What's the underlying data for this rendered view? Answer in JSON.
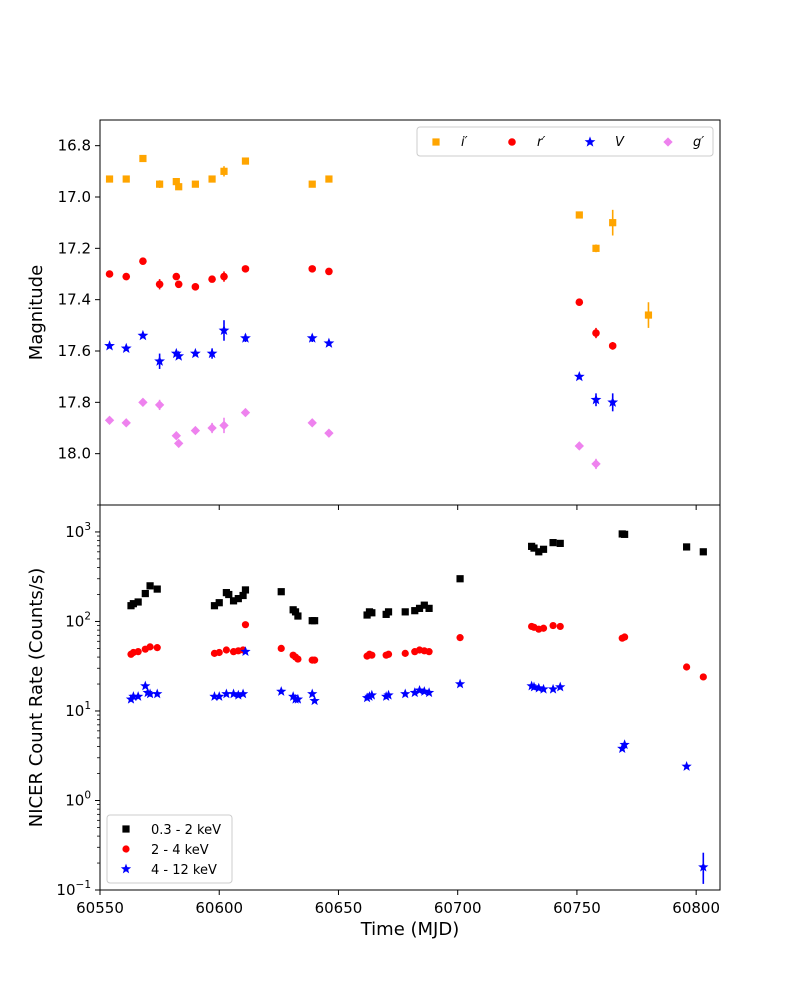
{
  "chart_data": [
    {
      "type": "scatter",
      "ylabel": "Magnitude",
      "y_inverted": true,
      "ylim": [
        16.7,
        18.2
      ],
      "xlim": [
        60550,
        60810
      ],
      "y_ticks": [
        "16.8",
        "17.0",
        "17.2",
        "17.4",
        "17.6",
        "17.8",
        "18.0"
      ],
      "legend": {
        "placement": "top-right",
        "columns": 4
      },
      "series": [
        {
          "name": "i′",
          "marker": "square",
          "color": "#FFA500",
          "points": [
            [
              60554,
              16.93
            ],
            [
              60561,
              16.93
            ],
            [
              60568,
              16.85
            ],
            [
              60575,
              16.95
            ],
            [
              60582,
              16.94
            ],
            [
              60583,
              16.96
            ],
            [
              60590,
              16.95
            ],
            [
              60597,
              16.93
            ],
            [
              60602,
              16.9
            ],
            [
              60611,
              16.86
            ],
            [
              60639,
              16.95
            ],
            [
              60646,
              16.93
            ],
            [
              60751,
              17.07
            ],
            [
              60758,
              17.2
            ],
            [
              60765,
              17.1
            ],
            [
              60780,
              17.46
            ]
          ]
        },
        {
          "name": "r′",
          "marker": "circle",
          "color": "#FF0000",
          "points": [
            [
              60554,
              17.3
            ],
            [
              60561,
              17.31
            ],
            [
              60568,
              17.25
            ],
            [
              60575,
              17.34
            ],
            [
              60582,
              17.31
            ],
            [
              60583,
              17.34
            ],
            [
              60590,
              17.35
            ],
            [
              60597,
              17.32
            ],
            [
              60602,
              17.31
            ],
            [
              60611,
              17.28
            ],
            [
              60639,
              17.28
            ],
            [
              60646,
              17.29
            ],
            [
              60751,
              17.41
            ],
            [
              60758,
              17.53
            ],
            [
              60765,
              17.58
            ]
          ]
        },
        {
          "name": "V",
          "marker": "star",
          "color": "#0000FF",
          "points": [
            [
              60554,
              17.58
            ],
            [
              60561,
              17.59
            ],
            [
              60568,
              17.54
            ],
            [
              60575,
              17.64
            ],
            [
              60582,
              17.61
            ],
            [
              60583,
              17.62
            ],
            [
              60590,
              17.61
            ],
            [
              60597,
              17.61
            ],
            [
              60602,
              17.52
            ],
            [
              60611,
              17.55
            ],
            [
              60639,
              17.55
            ],
            [
              60646,
              17.57
            ],
            [
              60751,
              17.7
            ],
            [
              60758,
              17.79
            ],
            [
              60765,
              17.8
            ]
          ]
        },
        {
          "name": "g′",
          "marker": "diamond",
          "color": "#EE82EE",
          "points": [
            [
              60554,
              17.87
            ],
            [
              60561,
              17.88
            ],
            [
              60568,
              17.8
            ],
            [
              60575,
              17.81
            ],
            [
              60582,
              17.93
            ],
            [
              60583,
              17.96
            ],
            [
              60590,
              17.91
            ],
            [
              60597,
              17.9
            ],
            [
              60602,
              17.89
            ],
            [
              60611,
              17.84
            ],
            [
              60639,
              17.88
            ],
            [
              60646,
              17.92
            ],
            [
              60751,
              17.97
            ],
            [
              60758,
              18.04
            ]
          ]
        }
      ]
    },
    {
      "type": "scatter",
      "ylabel": "NICER Count Rate (Counts/s)",
      "xlabel": "Time (MJD)",
      "y_scale": "log",
      "ylim": [
        0.1,
        2000
      ],
      "xlim": [
        60550,
        60810
      ],
      "x_ticks": [
        "60550",
        "60600",
        "60650",
        "60700",
        "60750",
        "60800"
      ],
      "y_ticks": [
        {
          "base": "10",
          "exp": "−1"
        },
        {
          "base": "10",
          "exp": "0"
        },
        {
          "base": "10",
          "exp": "1"
        },
        {
          "base": "10",
          "exp": "2"
        },
        {
          "base": "10",
          "exp": "3"
        }
      ],
      "legend": {
        "placement": "bottom-left",
        "columns": 1
      },
      "series": [
        {
          "name": "0.3 - 2 keV",
          "marker": "square",
          "color": "#000000",
          "points": [
            [
              60563,
              150
            ],
            [
              60564,
              158
            ],
            [
              60566,
              165
            ],
            [
              60569,
              205
            ],
            [
              60571,
              250
            ],
            [
              60574,
              230
            ],
            [
              60598,
              150
            ],
            [
              60600,
              162
            ],
            [
              60603,
              210
            ],
            [
              60604,
              200
            ],
            [
              60606,
              170
            ],
            [
              60608,
              180
            ],
            [
              60610,
              195
            ],
            [
              60611,
              225
            ],
            [
              60626,
              215
            ],
            [
              60631,
              135
            ],
            [
              60632,
              128
            ],
            [
              60633,
              115
            ],
            [
              60639,
              102
            ],
            [
              60640,
              102
            ],
            [
              60662,
              118
            ],
            [
              60663,
              128
            ],
            [
              60664,
              125
            ],
            [
              60670,
              120
            ],
            [
              60671,
              128
            ],
            [
              60678,
              128
            ],
            [
              60682,
              132
            ],
            [
              60684,
              140
            ],
            [
              60686,
              152
            ],
            [
              60688,
              140
            ],
            [
              60701,
              300
            ],
            [
              60731,
              690
            ],
            [
              60732,
              660
            ],
            [
              60734,
              600
            ],
            [
              60736,
              640
            ],
            [
              60740,
              760
            ],
            [
              60743,
              745
            ],
            [
              60769,
              950
            ],
            [
              60770,
              940
            ],
            [
              60796,
              680
            ],
            [
              60803,
              600
            ]
          ]
        },
        {
          "name": "2 - 4 keV",
          "marker": "circle",
          "color": "#FF0000",
          "points": [
            [
              60563,
              43
            ],
            [
              60564,
              45
            ],
            [
              60566,
              46
            ],
            [
              60569,
              49
            ],
            [
              60571,
              52
            ],
            [
              60574,
              51
            ],
            [
              60598,
              44
            ],
            [
              60600,
              45
            ],
            [
              60603,
              48
            ],
            [
              60606,
              46
            ],
            [
              60608,
              47
            ],
            [
              60610,
              48
            ],
            [
              60611,
              92
            ],
            [
              60626,
              50
            ],
            [
              60631,
              42
            ],
            [
              60632,
              40
            ],
            [
              60633,
              38
            ],
            [
              60639,
              37
            ],
            [
              60640,
              37
            ],
            [
              60662,
              41
            ],
            [
              60663,
              43
            ],
            [
              60664,
              42
            ],
            [
              60670,
              42
            ],
            [
              60671,
              43
            ],
            [
              60678,
              44
            ],
            [
              60682,
              46
            ],
            [
              60684,
              48
            ],
            [
              60686,
              47
            ],
            [
              60688,
              46
            ],
            [
              60701,
              66
            ],
            [
              60731,
              88
            ],
            [
              60732,
              86
            ],
            [
              60734,
              82
            ],
            [
              60736,
              84
            ],
            [
              60740,
              90
            ],
            [
              60743,
              88
            ],
            [
              60769,
              65
            ],
            [
              60770,
              67
            ],
            [
              60796,
              31
            ],
            [
              60803,
              24
            ]
          ]
        },
        {
          "name": "4 - 12 keV",
          "marker": "star",
          "color": "#0000FF",
          "points": [
            [
              60563,
              13.5
            ],
            [
              60564,
              14.5
            ],
            [
              60566,
              14.5
            ],
            [
              60569,
              19
            ],
            [
              60570,
              16
            ],
            [
              60571,
              15.5
            ],
            [
              60574,
              15.5
            ],
            [
              60598,
              14.5
            ],
            [
              60600,
              14.5
            ],
            [
              60603,
              15.5
            ],
            [
              60606,
              15.5
            ],
            [
              60608,
              15
            ],
            [
              60610,
              15.5
            ],
            [
              60611,
              46
            ],
            [
              60626,
              16.5
            ],
            [
              60631,
              14.5
            ],
            [
              60632,
              13.5
            ],
            [
              60633,
              13.5
            ],
            [
              60639,
              15.5
            ],
            [
              60640,
              13
            ],
            [
              60662,
              14
            ],
            [
              60663,
              14.5
            ],
            [
              60664,
              15
            ],
            [
              60670,
              14.5
            ],
            [
              60671,
              15
            ],
            [
              60678,
              15.5
            ],
            [
              60682,
              16
            ],
            [
              60684,
              17
            ],
            [
              60686,
              16.5
            ],
            [
              60688,
              16
            ],
            [
              60701,
              20
            ],
            [
              60731,
              19
            ],
            [
              60732,
              18.5
            ],
            [
              60734,
              18
            ],
            [
              60736,
              17.5
            ],
            [
              60740,
              17.5
            ],
            [
              60743,
              18.5
            ],
            [
              60769,
              3.8
            ],
            [
              60770,
              4.2
            ],
            [
              60796,
              2.4
            ],
            [
              60803,
              0.18
            ]
          ]
        }
      ]
    }
  ]
}
